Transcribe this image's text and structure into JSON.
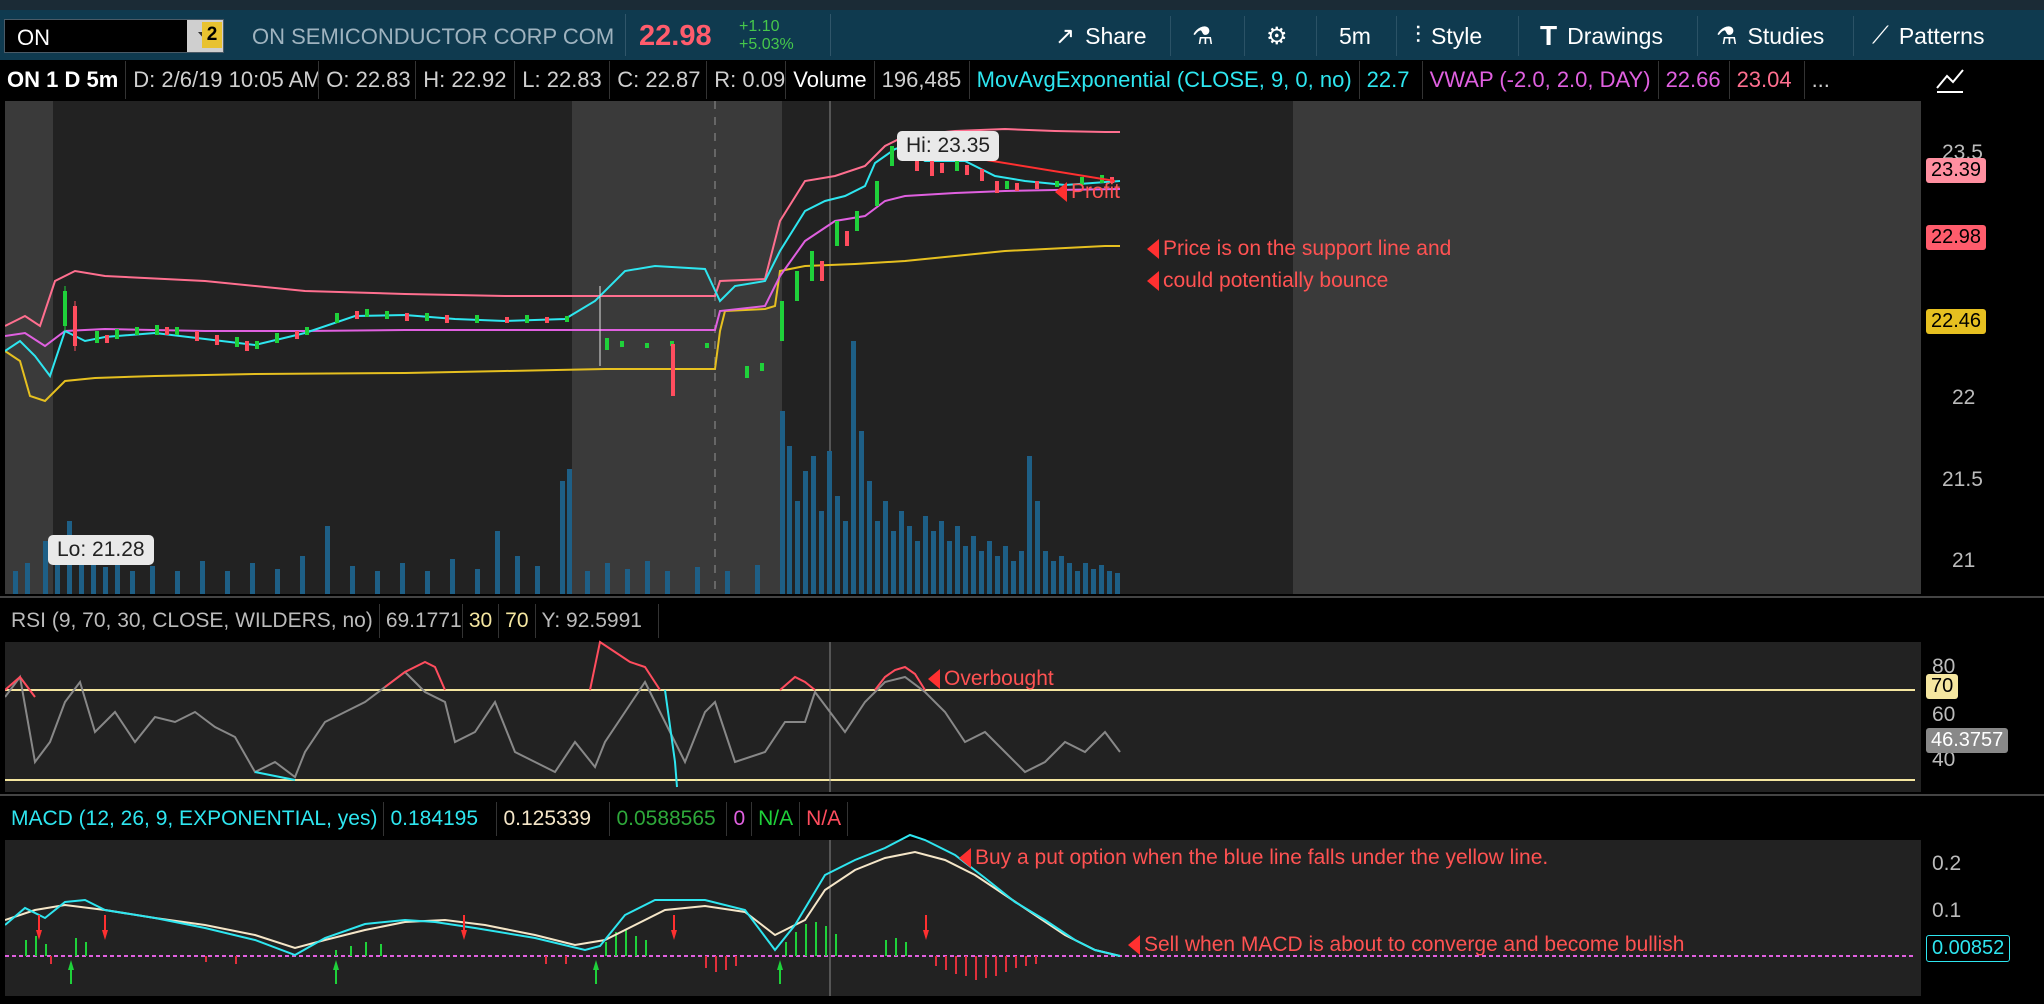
{
  "header": {
    "symbol": "ON",
    "link_number": "2",
    "company": "ON SEMICONDUCTOR CORP COM",
    "last_price": "22.98",
    "change": "+1.10",
    "change_pct": "+5.03%",
    "toolbar": {
      "share": "Share",
      "timeframe": "5m",
      "style": "Style",
      "drawings": "Drawings",
      "studies": "Studies",
      "patterns": "Patterns"
    }
  },
  "infobar": {
    "title": "ON 1 D 5m",
    "date": "D: 2/6/19 10:05 AM",
    "open": "O: 22.83",
    "high": "H: 22.92",
    "low": "L: 22.83",
    "close": "C: 22.87",
    "range": "R: 0.09",
    "volume_label": "Volume",
    "volume_value": "196,485",
    "ema_label": "MovAvgExponential (CLOSE, 9, 0, no)",
    "ema_value": "22.7",
    "vwap_label": "VWAP (-2.0, 2.0, DAY)",
    "vwap_value": "22.66",
    "vwap_upper": "23.04",
    "more": "..."
  },
  "price_panel": {
    "axis_ticks": [
      "23.5",
      "22",
      "21.5",
      "21"
    ],
    "tag_upper": "23.39",
    "tag_last": "22.98",
    "tag_lower": "22.46",
    "hi_callout": "Hi: 23.35",
    "lo_callout": "Lo: 21.28",
    "annotation_profit": "Profit",
    "annotation_support_1": "Price is on the support line and",
    "annotation_support_2": "could potentially bounce"
  },
  "rsi_panel": {
    "label": "RSI (9, 70, 30, CLOSE, WILDERS, no)",
    "value": "69.1771",
    "oversold": "30",
    "overbought": "70",
    "y_value": "Y: 92.5991",
    "axis_ticks": [
      "80",
      "60",
      "40"
    ],
    "tag_70": "70",
    "tag_current": "46.3757",
    "annotation": "Overbought"
  },
  "macd_panel": {
    "label": "MACD (12, 26, 9, EXPONENTIAL, yes)",
    "value": "0.184195",
    "avg": "0.125339",
    "diff": "0.0588565",
    "zero": "0",
    "na1": "N/A",
    "na2": "N/A",
    "axis_ticks": [
      "0.2",
      "0.1"
    ],
    "tag_current": "0.00852",
    "annotation_buy": "Buy a put option when the blue line falls under the yellow line.",
    "annotation_sell": "Sell when MACD is about to converge and become bullish"
  },
  "colors": {
    "accent_header": "#0f3a4f",
    "up": "#1fd13a",
    "down": "#ff4d5e",
    "ema": "#2ee6f0",
    "vwap": "#e060e0",
    "vwap_upper": "#ff6f8f",
    "vwap_lower": "#e6c020",
    "volume": "#1e5f86"
  }
}
